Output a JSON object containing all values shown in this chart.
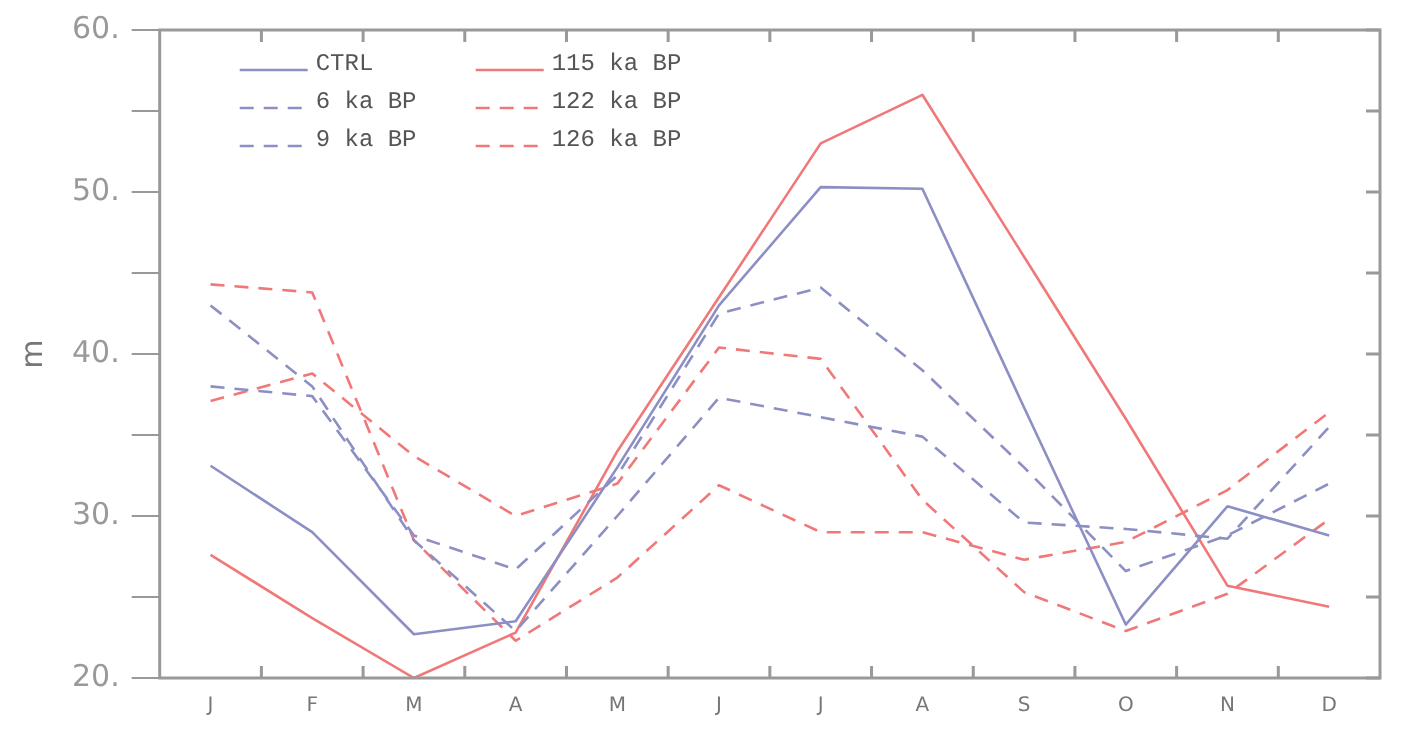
{
  "chart_data": {
    "type": "line",
    "ylabel": "m",
    "categories": [
      "J",
      "F",
      "M",
      "A",
      "M",
      "J",
      "J",
      "A",
      "S",
      "O",
      "N",
      "D"
    ],
    "ylim": [
      20,
      60
    ],
    "yticks": [
      {
        "value": 20,
        "label": "20."
      },
      {
        "value": 25,
        "label": null
      },
      {
        "value": 30,
        "label": "30."
      },
      {
        "value": 35,
        "label": null
      },
      {
        "value": 40,
        "label": "40."
      },
      {
        "value": 45,
        "label": null
      },
      {
        "value": 50,
        "label": "50."
      },
      {
        "value": 55,
        "label": null
      },
      {
        "value": 60,
        "label": "60."
      }
    ],
    "grid": false,
    "legend": "top left",
    "marker": "none",
    "series": [
      {
        "name": "CTRL",
        "color": "#8c8fc4",
        "line_style": "solid",
        "values": [
          33.1,
          29.0,
          22.7,
          23.5,
          33,
          43,
          50.3,
          50.2,
          36.7,
          23.3,
          30.6,
          28.8
        ]
      },
      {
        "name": "6 ka BP",
        "color": "#8c8fc4",
        "line_style": "dashed",
        "values": [
          38.0,
          37.4,
          28.8,
          26.7,
          32.5,
          42.5,
          44.1,
          39,
          33,
          26.6,
          28.8,
          32.0
        ]
      },
      {
        "name": "9 ka BP",
        "color": "#8c8fc4",
        "line_style": "dashed",
        "values": [
          43,
          38,
          28.5,
          22.9,
          30,
          37.3,
          36.1,
          34.9,
          29.6,
          29.2,
          28.6,
          35.5
        ]
      },
      {
        "name": "115 ka BP",
        "color": "#f07878",
        "line_style": "solid",
        "values": [
          27.6,
          23.7,
          20,
          22.8,
          34,
          43.5,
          53,
          56.0,
          46,
          36,
          25.7,
          24.4
        ]
      },
      {
        "name": "122 ka BP",
        "color": "#f07878",
        "line_style": "dashed",
        "values": [
          37.1,
          38.8,
          33.7,
          30.0,
          32,
          40.4,
          39.7,
          31,
          25.3,
          22.9,
          25.2,
          29.8
        ]
      },
      {
        "name": "126 ka BP",
        "color": "#f07878",
        "line_style": "dashed",
        "values": [
          44.3,
          43.8,
          28.5,
          22.3,
          26.2,
          31.9,
          29.0,
          29.0,
          27.3,
          28.4,
          31.6,
          36.4
        ]
      }
    ]
  }
}
